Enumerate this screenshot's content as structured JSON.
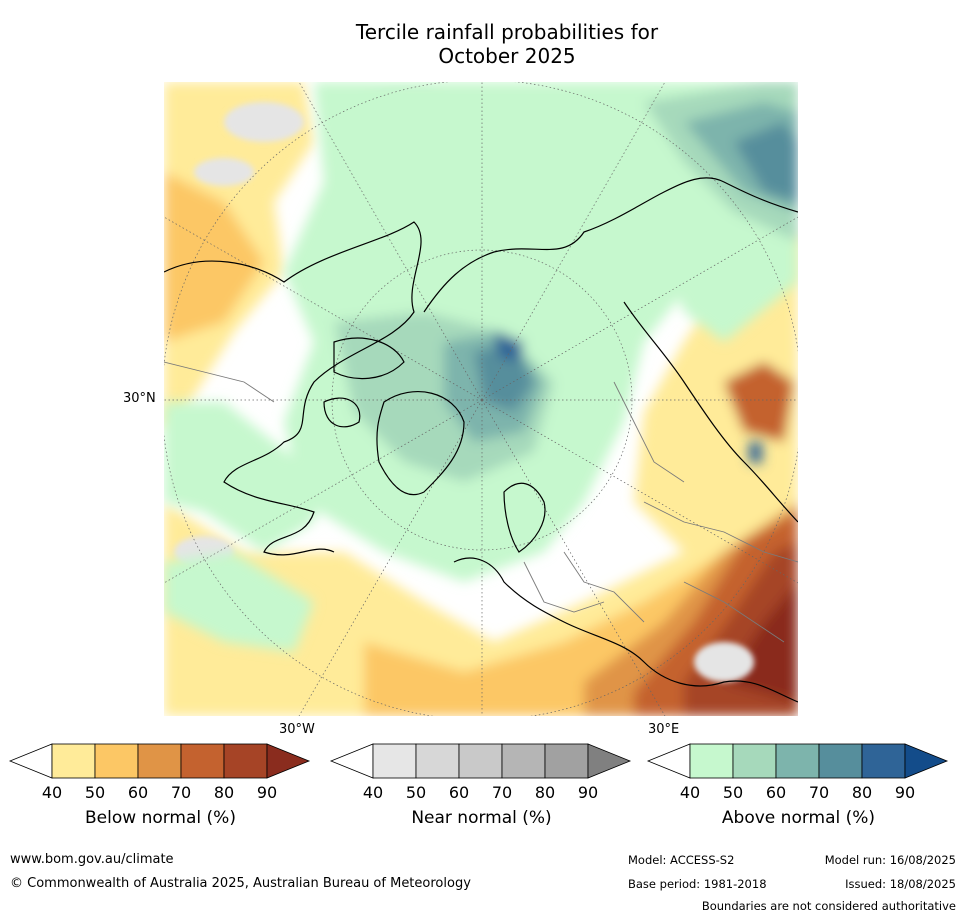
{
  "title": {
    "line1": "Tercile rainfall probabilities for",
    "line2": "October 2025"
  },
  "map": {
    "projection": "north-polar-stereographic",
    "lat_label": "30°N",
    "lon_label_left": "30°W",
    "lon_label_right": "30°E",
    "colors": {
      "ocean_white": "#ffffff",
      "below_40": "#ffeb99",
      "below_50": "#fcc765",
      "below_60": "#e09446",
      "below_70": "#c4622f",
      "below_80": "#a64426",
      "below_90": "#8a2c1e",
      "near_40": "#e5e5e5",
      "above_40": "#c6f8ce",
      "above_50": "#a6d9bb",
      "above_60": "#7db4ac",
      "above_70": "#568e9c",
      "above_80": "#2f6497",
      "above_90": "#134c8a",
      "coast": "#000000",
      "border": "#7a7a7a"
    }
  },
  "colorbars": [
    {
      "id": "below",
      "label": "Below normal (%)",
      "ticks": [
        "40",
        "50",
        "60",
        "70",
        "80",
        "90"
      ],
      "colors": [
        "#ffffff",
        "#ffeb99",
        "#fcc765",
        "#e09446",
        "#c4622f",
        "#a64426",
        "#8a2c1e"
      ]
    },
    {
      "id": "near",
      "label": "Near normal (%)",
      "ticks": [
        "40",
        "50",
        "60",
        "70",
        "80",
        "90"
      ],
      "colors": [
        "#ffffff",
        "#e6e6e6",
        "#d7d7d7",
        "#c9c9c9",
        "#b5b5b5",
        "#a1a1a1",
        "#808080"
      ]
    },
    {
      "id": "above",
      "label": "Above normal (%)",
      "ticks": [
        "40",
        "50",
        "60",
        "70",
        "80",
        "90"
      ],
      "colors": [
        "#ffffff",
        "#c6f8ce",
        "#a6d9bb",
        "#7db4ac",
        "#568e9c",
        "#2f6497",
        "#134c8a"
      ]
    }
  ],
  "footer": {
    "website": "www.bom.gov.au/climate",
    "copyright": "© Commonwealth of Australia 2025, Australian Bureau of Meteorology",
    "model": "Model: ACCESS-S2",
    "base_period": "Base period: 1981-2018",
    "model_run": "Model run: 16/08/2025",
    "issued": "Issued: 18/08/2025",
    "disclaimer": "Boundaries are not considered authoritative"
  }
}
